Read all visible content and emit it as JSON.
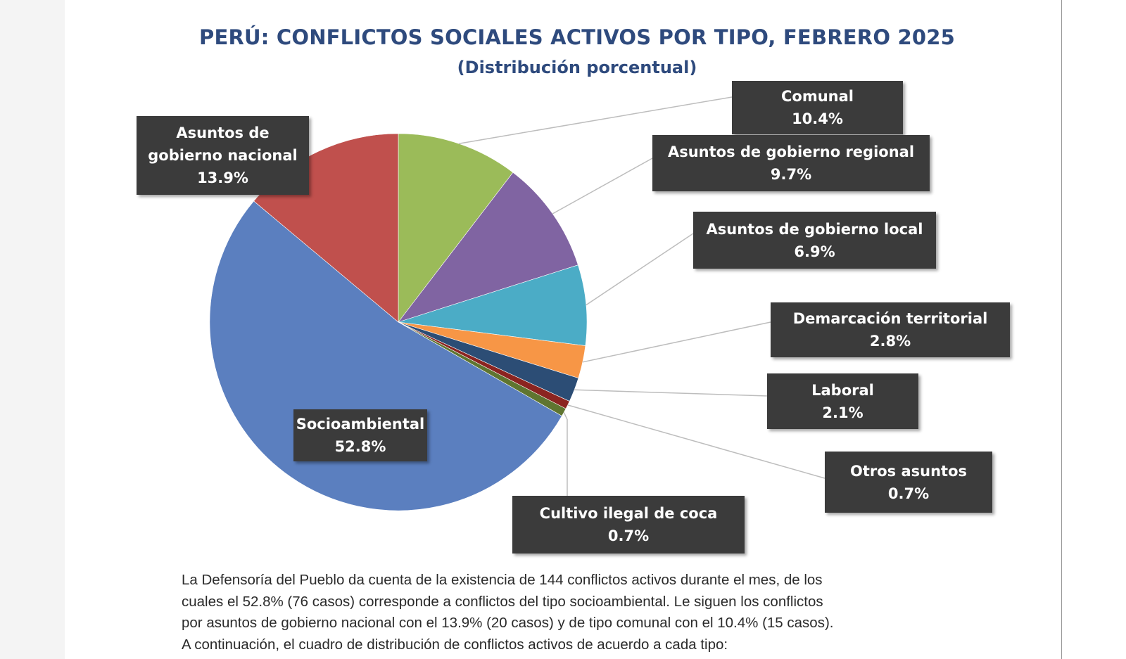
{
  "title": "PERÚ: CONFLICTOS SOCIALES ACTIVOS POR TIPO, FEBRERO 2025",
  "subtitle": "(Distribución porcentual)",
  "chart_data": {
    "type": "pie",
    "title": "PERÚ: CONFLICTOS SOCIALES ACTIVOS POR TIPO, FEBRERO 2025",
    "subtitle": "(Distribución porcentual)",
    "unit": "%",
    "slices": [
      {
        "key": "comunal",
        "label": "Comunal",
        "value": 10.4,
        "value_text": "10.4%",
        "color": "#9bbb59"
      },
      {
        "key": "regional",
        "label": "Asuntos de gobierno regional",
        "value": 9.7,
        "value_text": "9.7%",
        "color": "#8064a2"
      },
      {
        "key": "local",
        "label": "Asuntos de gobierno local",
        "value": 6.9,
        "value_text": "6.9%",
        "color": "#4bacc6"
      },
      {
        "key": "demarcacion",
        "label": "Demarcación territorial",
        "value": 2.8,
        "value_text": "2.8%",
        "color": "#f79646"
      },
      {
        "key": "laboral",
        "label": "Laboral",
        "value": 2.1,
        "value_text": "2.1%",
        "color": "#2c4d75"
      },
      {
        "key": "otros",
        "label": "Otros asuntos",
        "value": 0.7,
        "value_text": "0.7%",
        "color": "#8b2420"
      },
      {
        "key": "coca",
        "label": "Cultivo ilegal de coca",
        "value": 0.7,
        "value_text": "0.7%",
        "color": "#5f7530"
      },
      {
        "key": "socioambiental",
        "label": "Socioambiental",
        "value": 52.8,
        "value_text": "52.8%",
        "color": "#5b7fbf"
      },
      {
        "key": "nacional",
        "label": "Asuntos de gobierno nacional",
        "value": 13.9,
        "value_text": "13.9%",
        "color": "#c0504d"
      }
    ]
  },
  "labels": {
    "comunal": {
      "name": "Comunal",
      "value": "10.4%"
    },
    "regional": {
      "name": "Asuntos de gobierno regional",
      "value": "9.7%"
    },
    "local": {
      "name": "Asuntos de gobierno local",
      "value": "6.9%"
    },
    "demarcacion": {
      "name": "Demarcación territorial",
      "value": "2.8%"
    },
    "laboral": {
      "name": "Laboral",
      "value": "2.1%"
    },
    "otros": {
      "name": "Otros asuntos",
      "value": "0.7%"
    },
    "coca": {
      "name": "Cultivo ilegal de coca",
      "value": "0.7%"
    },
    "socioambiental": {
      "name": "Socioambiental",
      "value": "52.8%"
    },
    "nacional": {
      "name_line1": "Asuntos de",
      "name_line2": "gobierno nacional",
      "value": "13.9%"
    }
  },
  "paragraph": {
    "line1": "La Defensoría del Pueblo da cuenta de la existencia de 144 conflictos activos durante el mes, de los",
    "line2": "cuales el 52.8% (76 casos) corresponde a conflictos del tipo socioambiental. Le siguen los conflictos",
    "line3": "por asuntos de gobierno nacional con el 13.9% (20 casos) y de tipo comunal con el 10.4% (15 casos).",
    "line4": "A continuación, el cuadro de distribución de conflictos activos de acuerdo a cada tipo:"
  }
}
